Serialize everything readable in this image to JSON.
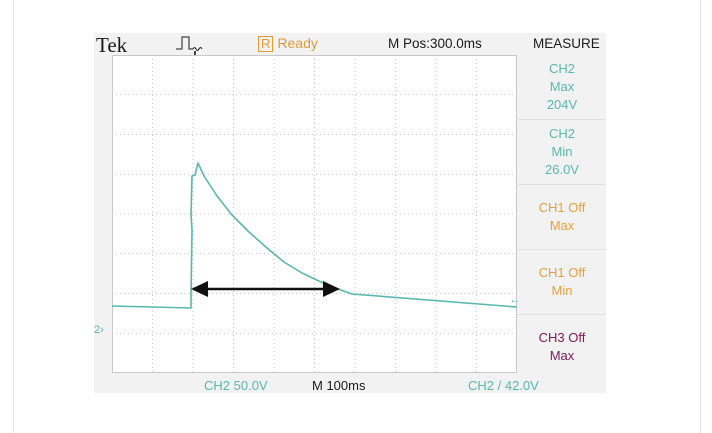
{
  "header": {
    "brand": "Tek",
    "status_box": "R",
    "status": "Ready",
    "m_pos": "M Pos:300.0ms",
    "measure_title": "MEASURE"
  },
  "measurements": [
    {
      "lines": [
        "CH2",
        "Max",
        "204V"
      ],
      "color": "#58b8b0"
    },
    {
      "lines": [
        "CH2",
        "Min",
        "26.0V"
      ],
      "color": "#58b8b0"
    },
    {
      "lines": [
        "CH1 Off",
        "Max"
      ],
      "color": "#e8a040"
    },
    {
      "lines": [
        "CH1 Off",
        "Min"
      ],
      "color": "#e8a040"
    },
    {
      "lines": [
        "CH3 Off",
        "Max"
      ],
      "color": "#7a1a5a"
    }
  ],
  "screen": {
    "channel_marker": "2",
    "trigger_marker": "←"
  },
  "footer": {
    "ch2_scale": "CH2 50.0V",
    "time_base": "M  100ms",
    "trigger": "CH2  / 42.0V"
  },
  "colors": {
    "ch2": "#58b8b0",
    "ch1": "#e8a040",
    "ch3": "#7a1a5a",
    "background": "#f2f2f2"
  }
}
